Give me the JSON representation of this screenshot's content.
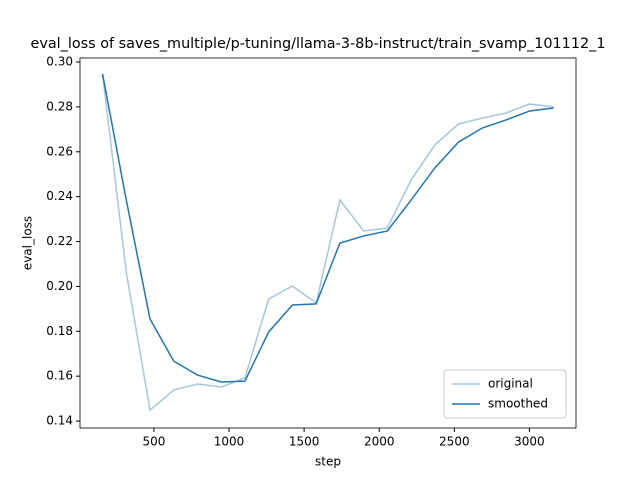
{
  "chart_data": {
    "type": "line",
    "title": "eval_loss of saves_multiple/p-tuning/llama-3-8b-instruct/train_svamp_101112_1",
    "x_label": "step",
    "y_label": "eval_loss",
    "x": [
      158,
      316,
      474,
      632,
      790,
      948,
      1106,
      1264,
      1422,
      1580,
      1738,
      1896,
      2054,
      2212,
      2370,
      2528,
      2686,
      2844,
      3002,
      3160
    ],
    "series": [
      {
        "name": "original",
        "color": "#a5c8e1",
        "values": [
          0.2947,
          0.2064,
          0.1449,
          0.1538,
          0.1565,
          0.1552,
          0.1592,
          0.1944,
          0.2002,
          0.1926,
          0.2385,
          0.2247,
          0.226,
          0.2474,
          0.263,
          0.2724,
          0.275,
          0.2773,
          0.2813,
          0.28
        ]
      },
      {
        "name": "smoothed",
        "color": "#1f77b4",
        "values": [
          0.2947,
          0.2385,
          0.1855,
          0.1667,
          0.1605,
          0.1574,
          0.1578,
          0.1797,
          0.1917,
          0.1922,
          0.2193,
          0.2225,
          0.2247,
          0.2385,
          0.2528,
          0.2643,
          0.2706,
          0.2742,
          0.2782,
          0.2795
        ]
      }
    ],
    "xlim": [
      8,
      3310
    ],
    "ylim": [
      0.1369,
      0.3018
    ],
    "xticks": [
      500,
      1000,
      1500,
      2000,
      2500,
      3000
    ],
    "yticks": [
      0.14,
      0.16,
      0.18,
      {
        "value": 0.2,
        "label": "0.20"
      },
      0.22,
      0.24,
      0.26,
      0.28,
      {
        "value": 0.3,
        "label": "0.30"
      }
    ],
    "legend": "lower right"
  }
}
